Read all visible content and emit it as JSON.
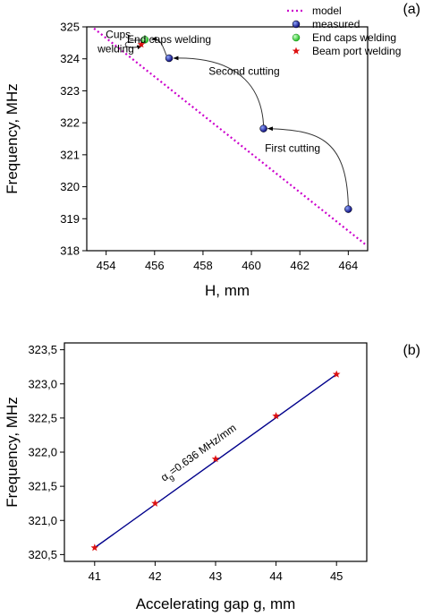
{
  "chart_data": [
    {
      "type": "scatter",
      "panel_label": "(a)",
      "xlabel": "H, mm",
      "ylabel": "Frequency, MHz",
      "xlim": [
        453.2,
        464.8
      ],
      "ylim": [
        318,
        325
      ],
      "xticks": [
        454,
        456,
        458,
        460,
        462,
        464
      ],
      "yticks": [
        318,
        319,
        320,
        321,
        322,
        323,
        324,
        325
      ],
      "legend_position": "top-right",
      "series": [
        {
          "name": "model",
          "kind": "dotted-line",
          "color": "#cc00cc",
          "points": [
            [
              453.5,
              324.95
            ],
            [
              464.7,
              318.2
            ]
          ]
        },
        {
          "name": "measured",
          "kind": "marker-circle",
          "color": "#1a1aa8",
          "points": [
            [
              464.0,
              319.3
            ],
            [
              460.5,
              321.82
            ],
            [
              456.6,
              324.02
            ]
          ]
        },
        {
          "name": "End caps welding",
          "kind": "marker-circle",
          "color": "#33dd33",
          "points": [
            [
              455.6,
              324.6
            ]
          ]
        },
        {
          "name": "Beam port welding",
          "kind": "marker-star",
          "color": "#dd1111",
          "points": [
            [
              455.45,
              324.45
            ]
          ]
        }
      ],
      "annotations": [
        {
          "text": "First cutting",
          "x": 461.7,
          "y": 321.1
        },
        {
          "text": "Second cutting",
          "x": 459.7,
          "y": 323.5
        },
        {
          "text": "End caps welding",
          "x": 456.6,
          "y": 324.5
        },
        {
          "text": "Cups",
          "x": 454.5,
          "y": 324.65
        },
        {
          "text": "welding",
          "x": 454.4,
          "y": 324.2
        }
      ]
    },
    {
      "type": "line",
      "panel_label": "(b)",
      "xlabel": "Accelerating gap g, mm",
      "ylabel": "Frequency, MHz",
      "xlim": [
        40.5,
        45.5
      ],
      "ylim": [
        320.4,
        323.6
      ],
      "xticks": [
        "41",
        "42",
        "43",
        "44",
        "45"
      ],
      "yticks": [
        "320,5",
        "321,0",
        "321,5",
        "322,0",
        "322,5",
        "323,0",
        "323,5"
      ],
      "x": [
        41,
        42,
        43,
        44,
        45
      ],
      "fit_line": {
        "color": "#00008b",
        "points": [
          [
            41,
            320.6
          ],
          [
            45,
            323.14
          ]
        ]
      },
      "series": [
        {
          "kind": "marker-star",
          "color": "#dd1111",
          "x": [
            41,
            42,
            43,
            44,
            45
          ],
          "values": [
            320.6,
            321.25,
            321.9,
            322.53,
            323.14
          ]
        }
      ],
      "annotation": {
        "main": "α",
        "sub": "g",
        "rest": "=0.636 MHz/mm",
        "x": 42.75,
        "y": 321.95
      }
    }
  ]
}
